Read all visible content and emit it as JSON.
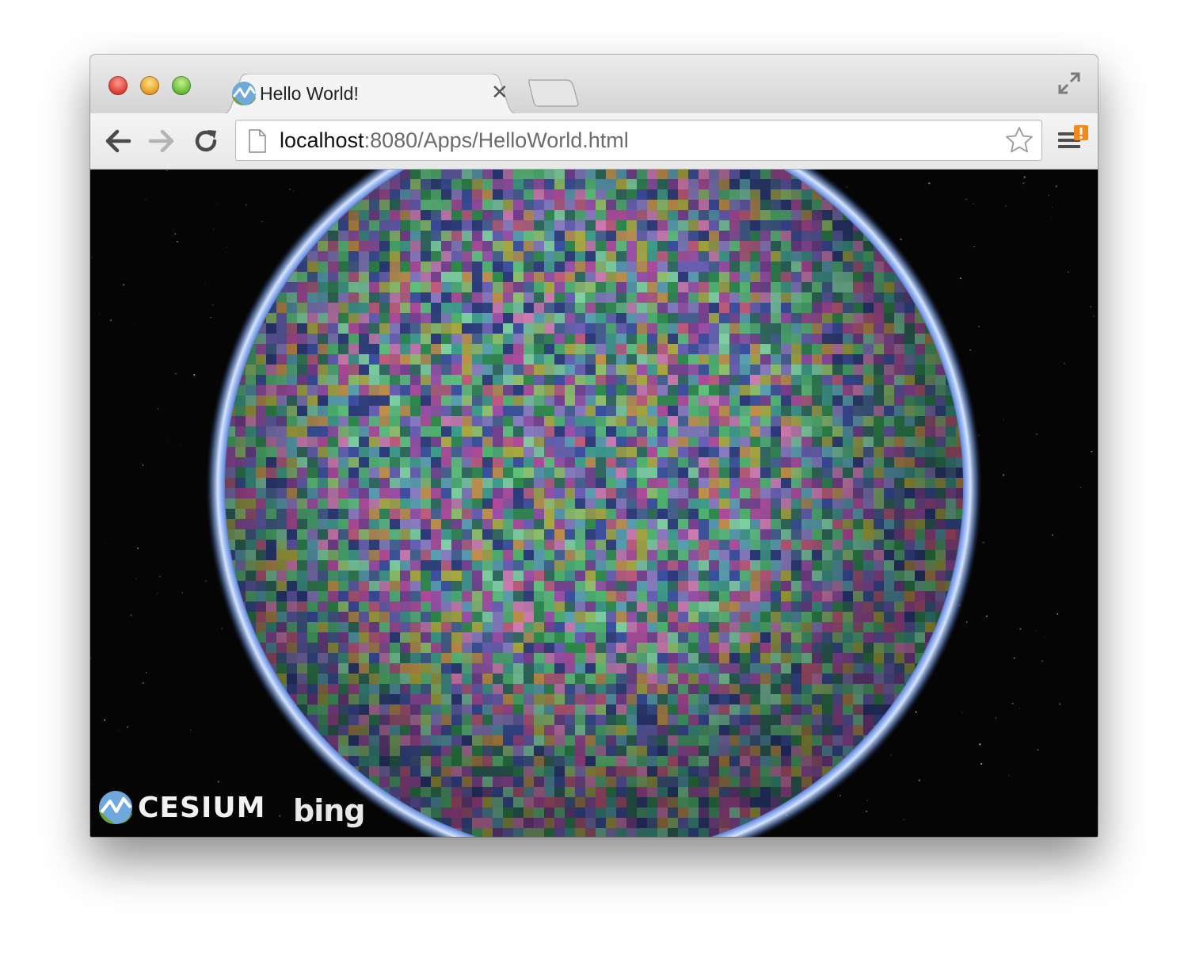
{
  "window": {
    "controls": [
      "close",
      "minimize",
      "maximize"
    ]
  },
  "tab": {
    "title": "Hello World!",
    "close_glyph": "✕",
    "favicon": "cesium-logo-icon"
  },
  "toolbar": {
    "back_icon": "arrow-left-icon",
    "forward_icon": "arrow-right-icon",
    "reload_icon": "reload-icon"
  },
  "omnibox": {
    "url_host": "localhost",
    "url_rest": ":8080/Apps/HelloWorld.html"
  },
  "credits": {
    "cesium_label": "CESIUM",
    "bing_label": "bing"
  },
  "colors": {
    "space": "#050505",
    "atmosphere": "#8fb6ff",
    "tab_bg": "#f4f4f4"
  }
}
